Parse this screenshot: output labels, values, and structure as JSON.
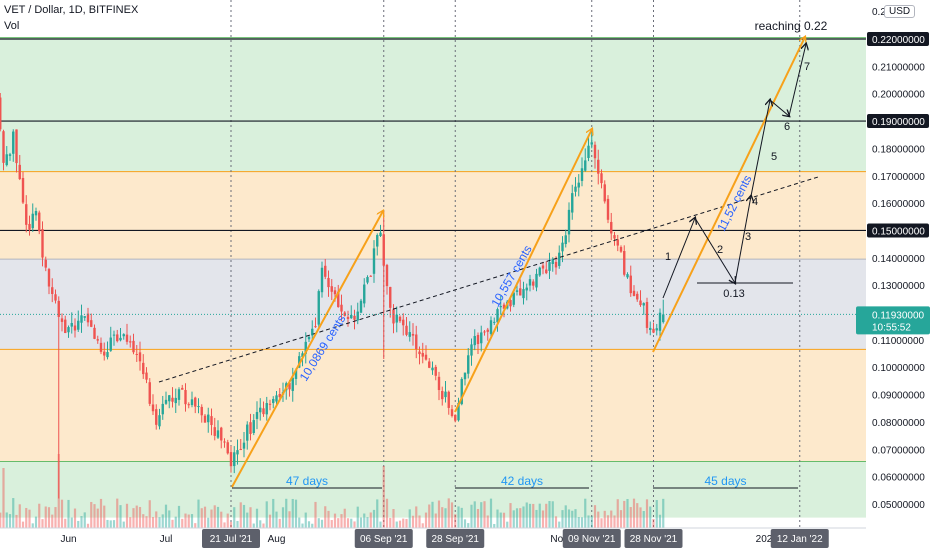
{
  "header": {
    "symbol_line": "VET / Dollar, 1D, BITFINEX",
    "indicator": "Vol",
    "currency_badge": "USD"
  },
  "chart_data": {
    "type": "candlestick",
    "ylim": [
      0.045,
      0.2305
    ],
    "y_ticks": [
      0.05,
      0.06,
      0.07,
      0.08,
      0.09,
      0.1,
      0.11,
      0.12,
      0.13,
      0.14,
      0.15,
      0.16,
      0.17,
      0.18,
      0.19,
      0.2,
      0.21,
      0.22
    ],
    "y_tick_labels": [
      "0.05000000",
      "0.06000000",
      "0.07000000",
      "0.08000000",
      "0.09000000",
      "0.10000000",
      "0.11000000",
      "0.12000000",
      "0.13000000",
      "0.14000000",
      "0.15000000",
      "0.16000000",
      "0.17000000",
      "0.18000000",
      "0.19000000",
      "0.20000000",
      "0.21000000",
      "0.22000000"
    ],
    "top_axis_label": "0.2",
    "x_labels": [
      "Jun",
      "Jul",
      "Aug",
      "Nov",
      "202"
    ],
    "highlighted_dates": [
      "21 Jul '21",
      "06 Sep '21",
      "28 Sep '21",
      "09 Nov '21",
      "28 Nov '21",
      "12 Jan '22"
    ],
    "price_label": "0.11930000",
    "price_countdown": "10:55:52",
    "last_price": 0.1193,
    "marked_levels": [
      {
        "label": "0.22000000",
        "value": 0.22
      },
      {
        "label": "0.19000000",
        "value": 0.19
      },
      {
        "label": "0.15000000",
        "value": 0.15
      }
    ],
    "zones": [
      {
        "from": 0.1065,
        "to": 0.1395,
        "color": "#e3e5eb"
      },
      {
        "from": 0.1395,
        "to": 0.1715,
        "color": "#fde9cc"
      },
      {
        "from": 0.1715,
        "to": 0.2205,
        "color": "#d9f0dc"
      },
      {
        "from": 0.0655,
        "to": 0.1065,
        "color": "#fde9cc"
      },
      {
        "from": 0.045,
        "to": 0.0655,
        "color": "#d9f0dc"
      }
    ],
    "annotations": {
      "target_text": "reaching 0.22",
      "rally_texts": [
        "10,0869 cents",
        "10,557 cents",
        "11,52 cents"
      ],
      "day_counts": [
        "47 days",
        "42 days",
        "45 days"
      ],
      "wave_numbers": [
        "1",
        "2",
        "3",
        "4",
        "5",
        "6",
        "7"
      ],
      "low_marker": "0.13"
    },
    "colors": {
      "up": "#26a69a",
      "down": "#ef5350",
      "projection": "#f7a11a",
      "rally_text": "#2962ff",
      "day_text": "#2196f3",
      "price_badge": "#26a69a"
    },
    "candles": []
  }
}
